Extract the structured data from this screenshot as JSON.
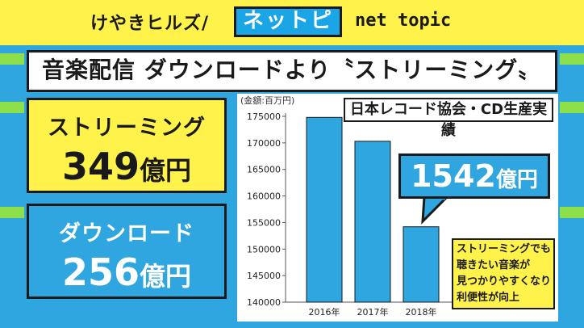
{
  "header": {
    "brand": "けやきヒルズ/",
    "logo": "ネットピ",
    "tagline": "net topic"
  },
  "title": "音楽配信 ダウンロードより〝ストリーミング〟",
  "stats": {
    "streaming": {
      "label": "ストリーミング",
      "value": "349",
      "unit": "億円"
    },
    "download": {
      "label": "ダウンロード",
      "value": "256",
      "unit": "億円"
    }
  },
  "source": "日本レコード協会・CD生産実績",
  "callout": {
    "value": "1542",
    "unit": "億円"
  },
  "note": {
    "lines": [
      "ストリーミングでも",
      "聴きたい音楽が",
      "見つかりやすくなり",
      "利便性が向上"
    ]
  },
  "colors": {
    "yellow": "#fff24a",
    "blue": "#2fa6e0",
    "green": "#8ee04a",
    "bar": "#2fa6e0"
  },
  "chart_data": {
    "type": "bar",
    "ylabel": "(金額:百万円)",
    "categories": [
      "2016年",
      "2017年",
      "2018年"
    ],
    "values": [
      174800,
      170300,
      154200
    ],
    "ylim": [
      140000,
      175000
    ],
    "yticks": [
      140000,
      145000,
      150000,
      155000,
      160000,
      165000,
      170000,
      175000
    ],
    "grid": false
  }
}
